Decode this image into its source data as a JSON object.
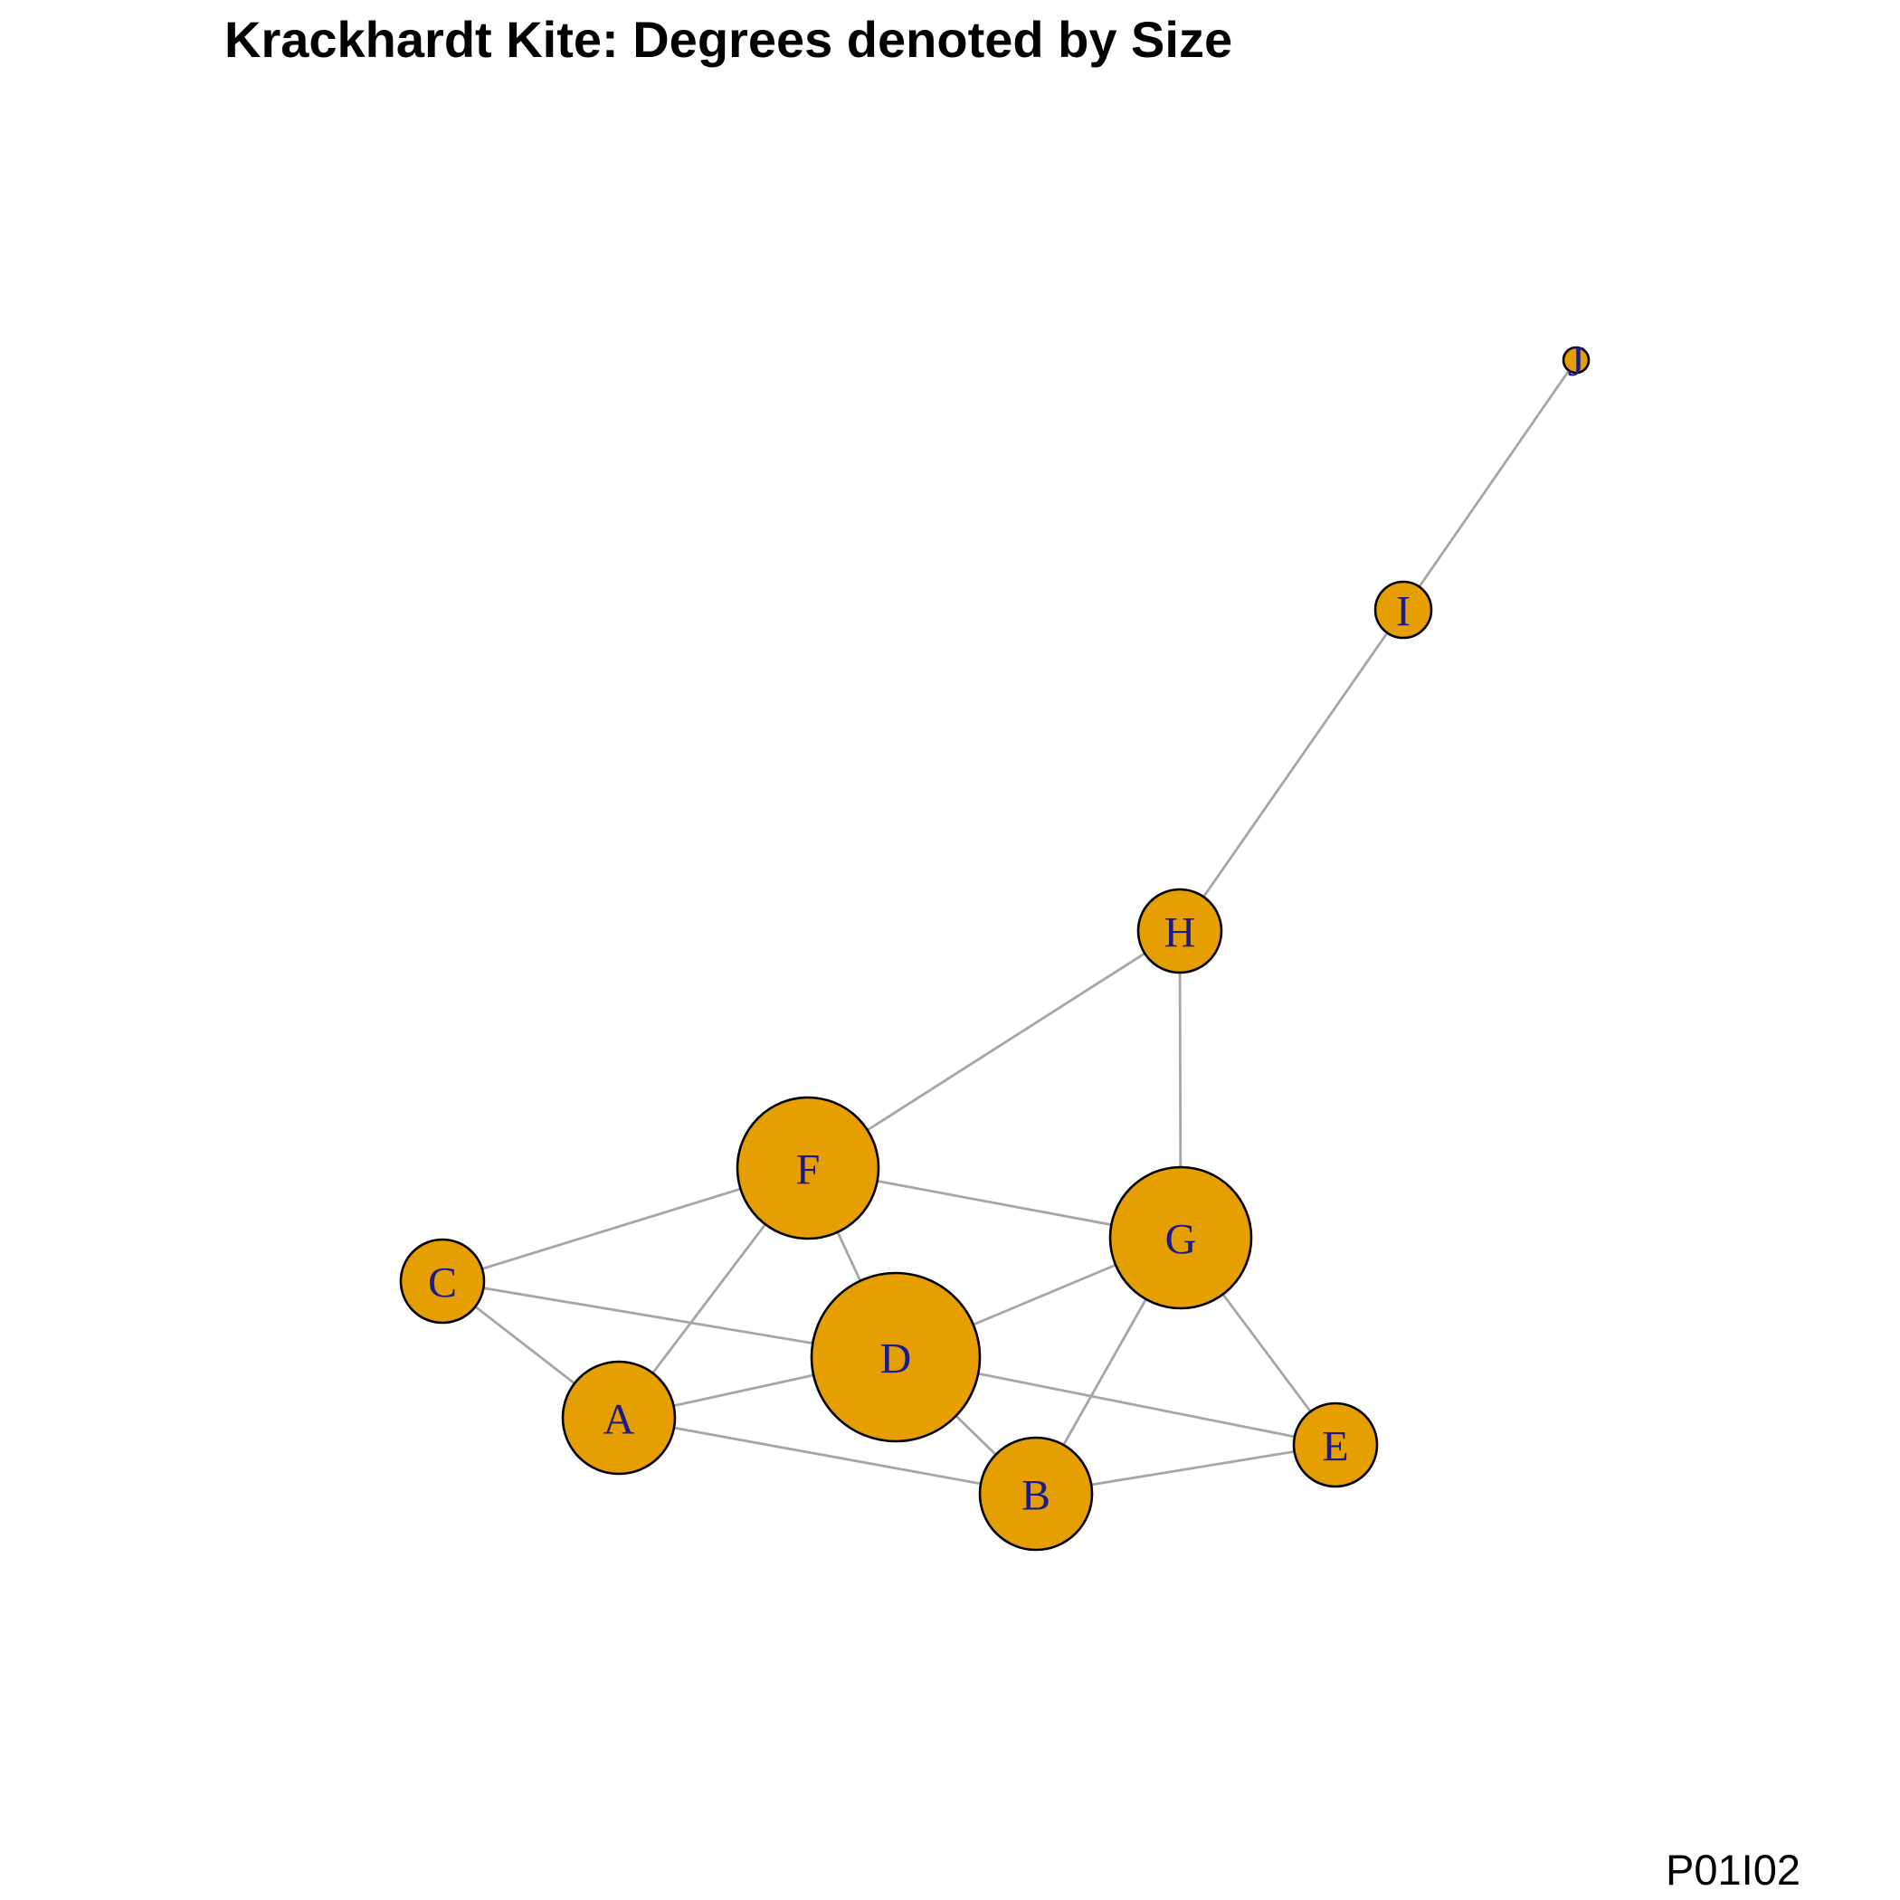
{
  "title": "Krackhardt Kite: Degrees denoted by Size",
  "footer_code": "P01I02",
  "colors": {
    "node_fill": "#E69F00",
    "label": "#1a1a8c",
    "edge": "#a6a6a6",
    "node_border": "#000000"
  },
  "graph": {
    "nodes": [
      {
        "id": "A",
        "label": "A",
        "degree": 4
      },
      {
        "id": "B",
        "label": "B",
        "degree": 4
      },
      {
        "id": "C",
        "label": "C",
        "degree": 3
      },
      {
        "id": "D",
        "label": "D",
        "degree": 6
      },
      {
        "id": "E",
        "label": "E",
        "degree": 3
      },
      {
        "id": "F",
        "label": "F",
        "degree": 5
      },
      {
        "id": "G",
        "label": "G",
        "degree": 5
      },
      {
        "id": "H",
        "label": "H",
        "degree": 3
      },
      {
        "id": "I",
        "label": "I",
        "degree": 2
      },
      {
        "id": "J",
        "label": "J",
        "degree": 1
      }
    ],
    "edges": [
      [
        "A",
        "B"
      ],
      [
        "A",
        "C"
      ],
      [
        "A",
        "D"
      ],
      [
        "A",
        "F"
      ],
      [
        "B",
        "D"
      ],
      [
        "B",
        "E"
      ],
      [
        "B",
        "G"
      ],
      [
        "C",
        "D"
      ],
      [
        "C",
        "F"
      ],
      [
        "D",
        "E"
      ],
      [
        "D",
        "F"
      ],
      [
        "D",
        "G"
      ],
      [
        "E",
        "G"
      ],
      [
        "F",
        "G"
      ],
      [
        "F",
        "H"
      ],
      [
        "G",
        "H"
      ],
      [
        "H",
        "I"
      ],
      [
        "I",
        "J"
      ]
    ]
  }
}
